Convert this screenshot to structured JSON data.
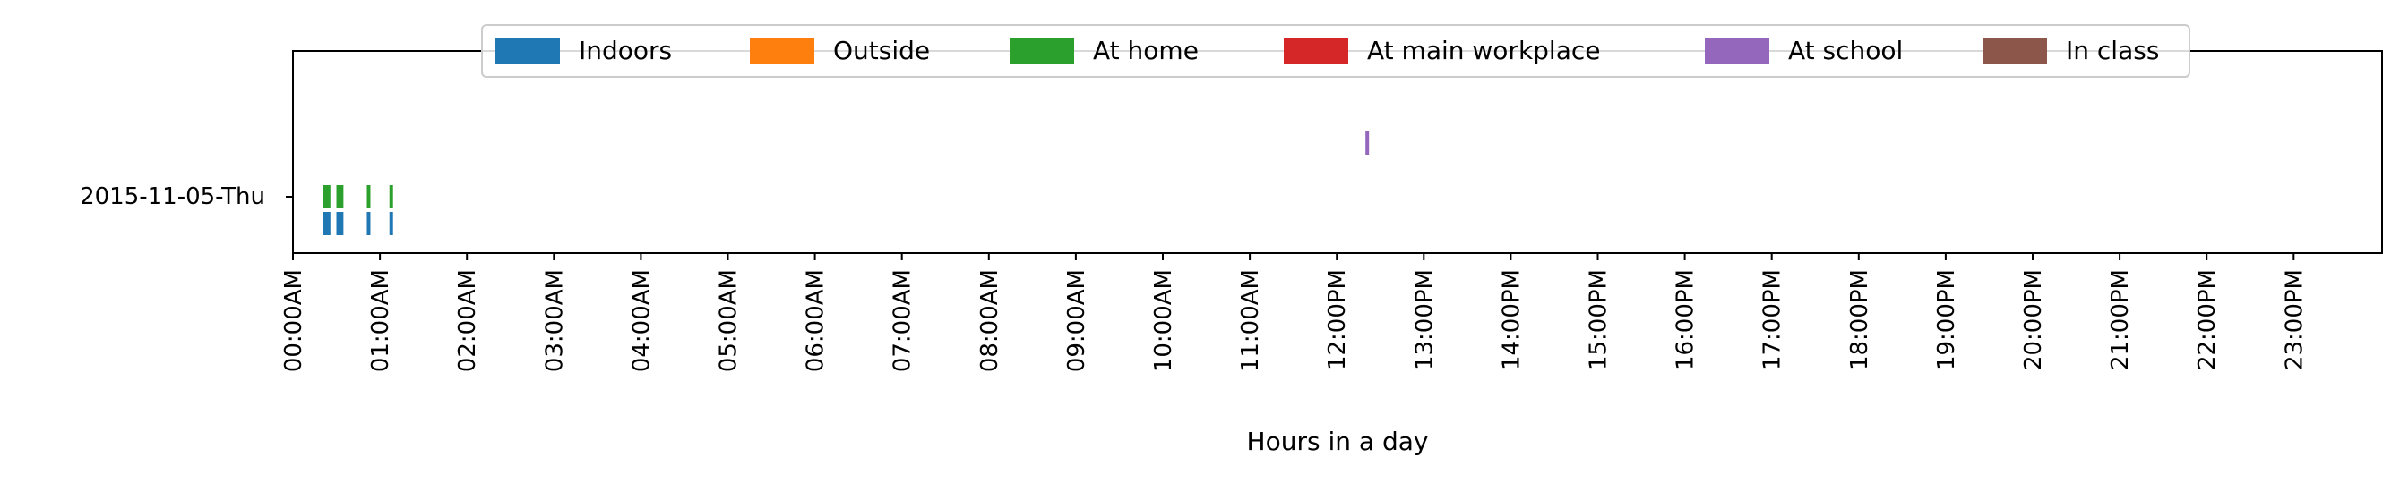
{
  "chart_data": {
    "type": "timeline",
    "title": "",
    "xlabel": "Hours in a day",
    "ylabel": "",
    "xlim": [
      0,
      24
    ],
    "x_ticks": [
      0,
      1,
      2,
      3,
      4,
      5,
      6,
      7,
      8,
      9,
      10,
      11,
      12,
      13,
      14,
      15,
      16,
      17,
      18,
      19,
      20,
      21,
      22,
      23
    ],
    "x_tick_labels": [
      "00:00AM",
      "01:00AM",
      "02:00AM",
      "03:00AM",
      "04:00AM",
      "05:00AM",
      "06:00AM",
      "07:00AM",
      "08:00AM",
      "09:00AM",
      "10:00AM",
      "11:00AM",
      "12:00PM",
      "13:00PM",
      "14:00PM",
      "15:00PM",
      "16:00PM",
      "17:00PM",
      "18:00PM",
      "19:00PM",
      "20:00PM",
      "21:00PM",
      "22:00PM",
      "23:00PM"
    ],
    "y_categories": [
      "2015-11-05-Thu"
    ],
    "legend_position": "top-center",
    "grid": false,
    "series": [
      {
        "name": "Indoors",
        "color": "#1f77b4",
        "lane": -1,
        "x_hours": [
          0.37,
          0.39,
          0.41,
          0.52,
          0.54,
          0.56,
          0.87,
          1.13
        ]
      },
      {
        "name": "Outside",
        "color": "#ff7f0e",
        "lane": 0,
        "x_hours": []
      },
      {
        "name": "At home",
        "color": "#2ca02c",
        "lane": 0,
        "x_hours": [
          0.37,
          0.39,
          0.41,
          0.52,
          0.54,
          0.56,
          0.87,
          1.13
        ]
      },
      {
        "name": "At main workplace",
        "color": "#d62728",
        "lane": 1,
        "x_hours": []
      },
      {
        "name": "At school",
        "color": "#9467bd",
        "lane": 2,
        "x_hours": [
          12.35
        ]
      },
      {
        "name": "In class",
        "color": "#8c564b",
        "lane": 3,
        "x_hours": []
      }
    ]
  }
}
